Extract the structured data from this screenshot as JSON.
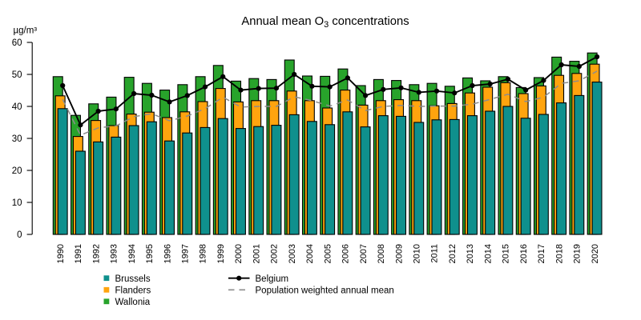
{
  "chart_data": {
    "type": "bar",
    "title": {
      "prefix": "Annual mean O",
      "sub": "3",
      "suffix": " concentrations"
    },
    "ylabel": "µg/m³",
    "xlabel": "",
    "ylim": [
      0,
      60
    ],
    "yticks": [
      0,
      10,
      20,
      30,
      40,
      50,
      60
    ],
    "grid": false,
    "legend_position": "bottom",
    "categories": [
      "1990",
      "1991",
      "1992",
      "1993",
      "1994",
      "1995",
      "1996",
      "1997",
      "1998",
      "1999",
      "2000",
      "2001",
      "2002",
      "2003",
      "2004",
      "2005",
      "2006",
      "2007",
      "2008",
      "2009",
      "2010",
      "2011",
      "2012",
      "2013",
      "2014",
      "2015",
      "2016",
      "2017",
      "2018",
      "2019",
      "2020"
    ],
    "series": [
      {
        "name": "Wallonia",
        "kind": "bar",
        "color": "#28a32b",
        "values": [
          49.3,
          37.2,
          40.8,
          42.9,
          49.1,
          47.2,
          45.1,
          46.8,
          49.3,
          52.8,
          47.9,
          48.7,
          48.4,
          54.5,
          49.5,
          49.4,
          51.7,
          46.5,
          48.4,
          48.1,
          46.8,
          47.2,
          46.3,
          48.9,
          48.0,
          49.3,
          45.9,
          49.0,
          55.4,
          54.1,
          56.7
        ]
      },
      {
        "name": "Flanders",
        "kind": "bar",
        "color": "#ffa40e",
        "values": [
          43.3,
          30.6,
          35.6,
          34.0,
          37.6,
          38.2,
          36.5,
          38.3,
          41.5,
          45.6,
          41.4,
          41.8,
          41.8,
          44.8,
          41.8,
          39.5,
          45.1,
          40.4,
          41.8,
          42.1,
          41.8,
          40.2,
          40.9,
          44.2,
          46.0,
          47.4,
          44.0,
          46.4,
          49.7,
          50.3,
          53.2
        ]
      },
      {
        "name": "Brussels",
        "kind": "bar",
        "color": "#0f908d",
        "values": [
          39.3,
          26.0,
          28.9,
          30.4,
          34.0,
          35.2,
          29.2,
          31.7,
          33.4,
          36.2,
          33.1,
          33.7,
          34.1,
          37.4,
          35.3,
          34.3,
          38.3,
          33.6,
          37.1,
          36.9,
          35.0,
          35.8,
          35.9,
          37.1,
          38.5,
          40.0,
          36.3,
          37.5,
          41.1,
          43.4,
          47.6
        ]
      },
      {
        "name": "Belgium",
        "kind": "line",
        "color": "#000000",
        "values": [
          46.5,
          34.2,
          38.5,
          39.2,
          44.0,
          43.5,
          41.4,
          43.4,
          46.1,
          49.3,
          45.1,
          45.6,
          45.7,
          50.0,
          46.3,
          46.1,
          48.9,
          43.4,
          45.3,
          45.8,
          44.4,
          44.8,
          44.2,
          46.5,
          47.0,
          48.5,
          45.1,
          48.1,
          53.0,
          52.5,
          55.5
        ]
      },
      {
        "name": "Population weighted annual mean",
        "kind": "dashed-line",
        "color": "#8c8c8c",
        "values": [
          42.2,
          31.0,
          33.3,
          33.9,
          36.8,
          37.7,
          35.5,
          37.0,
          39.3,
          42.9,
          39.8,
          40.0,
          40.0,
          43.0,
          41.8,
          40.1,
          42.0,
          38.7,
          40.0,
          40.3,
          40.0,
          40.1,
          40.1,
          40.7,
          42.2,
          43.8,
          41.5,
          42.9,
          47.2,
          48.0,
          51.0
        ]
      }
    ],
    "legend": {
      "bars": [
        {
          "label": "Brussels",
          "color": "#0f908d"
        },
        {
          "label": "Flanders",
          "color": "#ffa40e"
        },
        {
          "label": "Wallonia",
          "color": "#28a32b"
        }
      ],
      "lines": [
        {
          "label": "Belgium",
          "style": "solid",
          "color": "#000000"
        },
        {
          "label": "Population weighted annual mean",
          "style": "dashed",
          "color": "#8c8c8c"
        }
      ]
    }
  }
}
